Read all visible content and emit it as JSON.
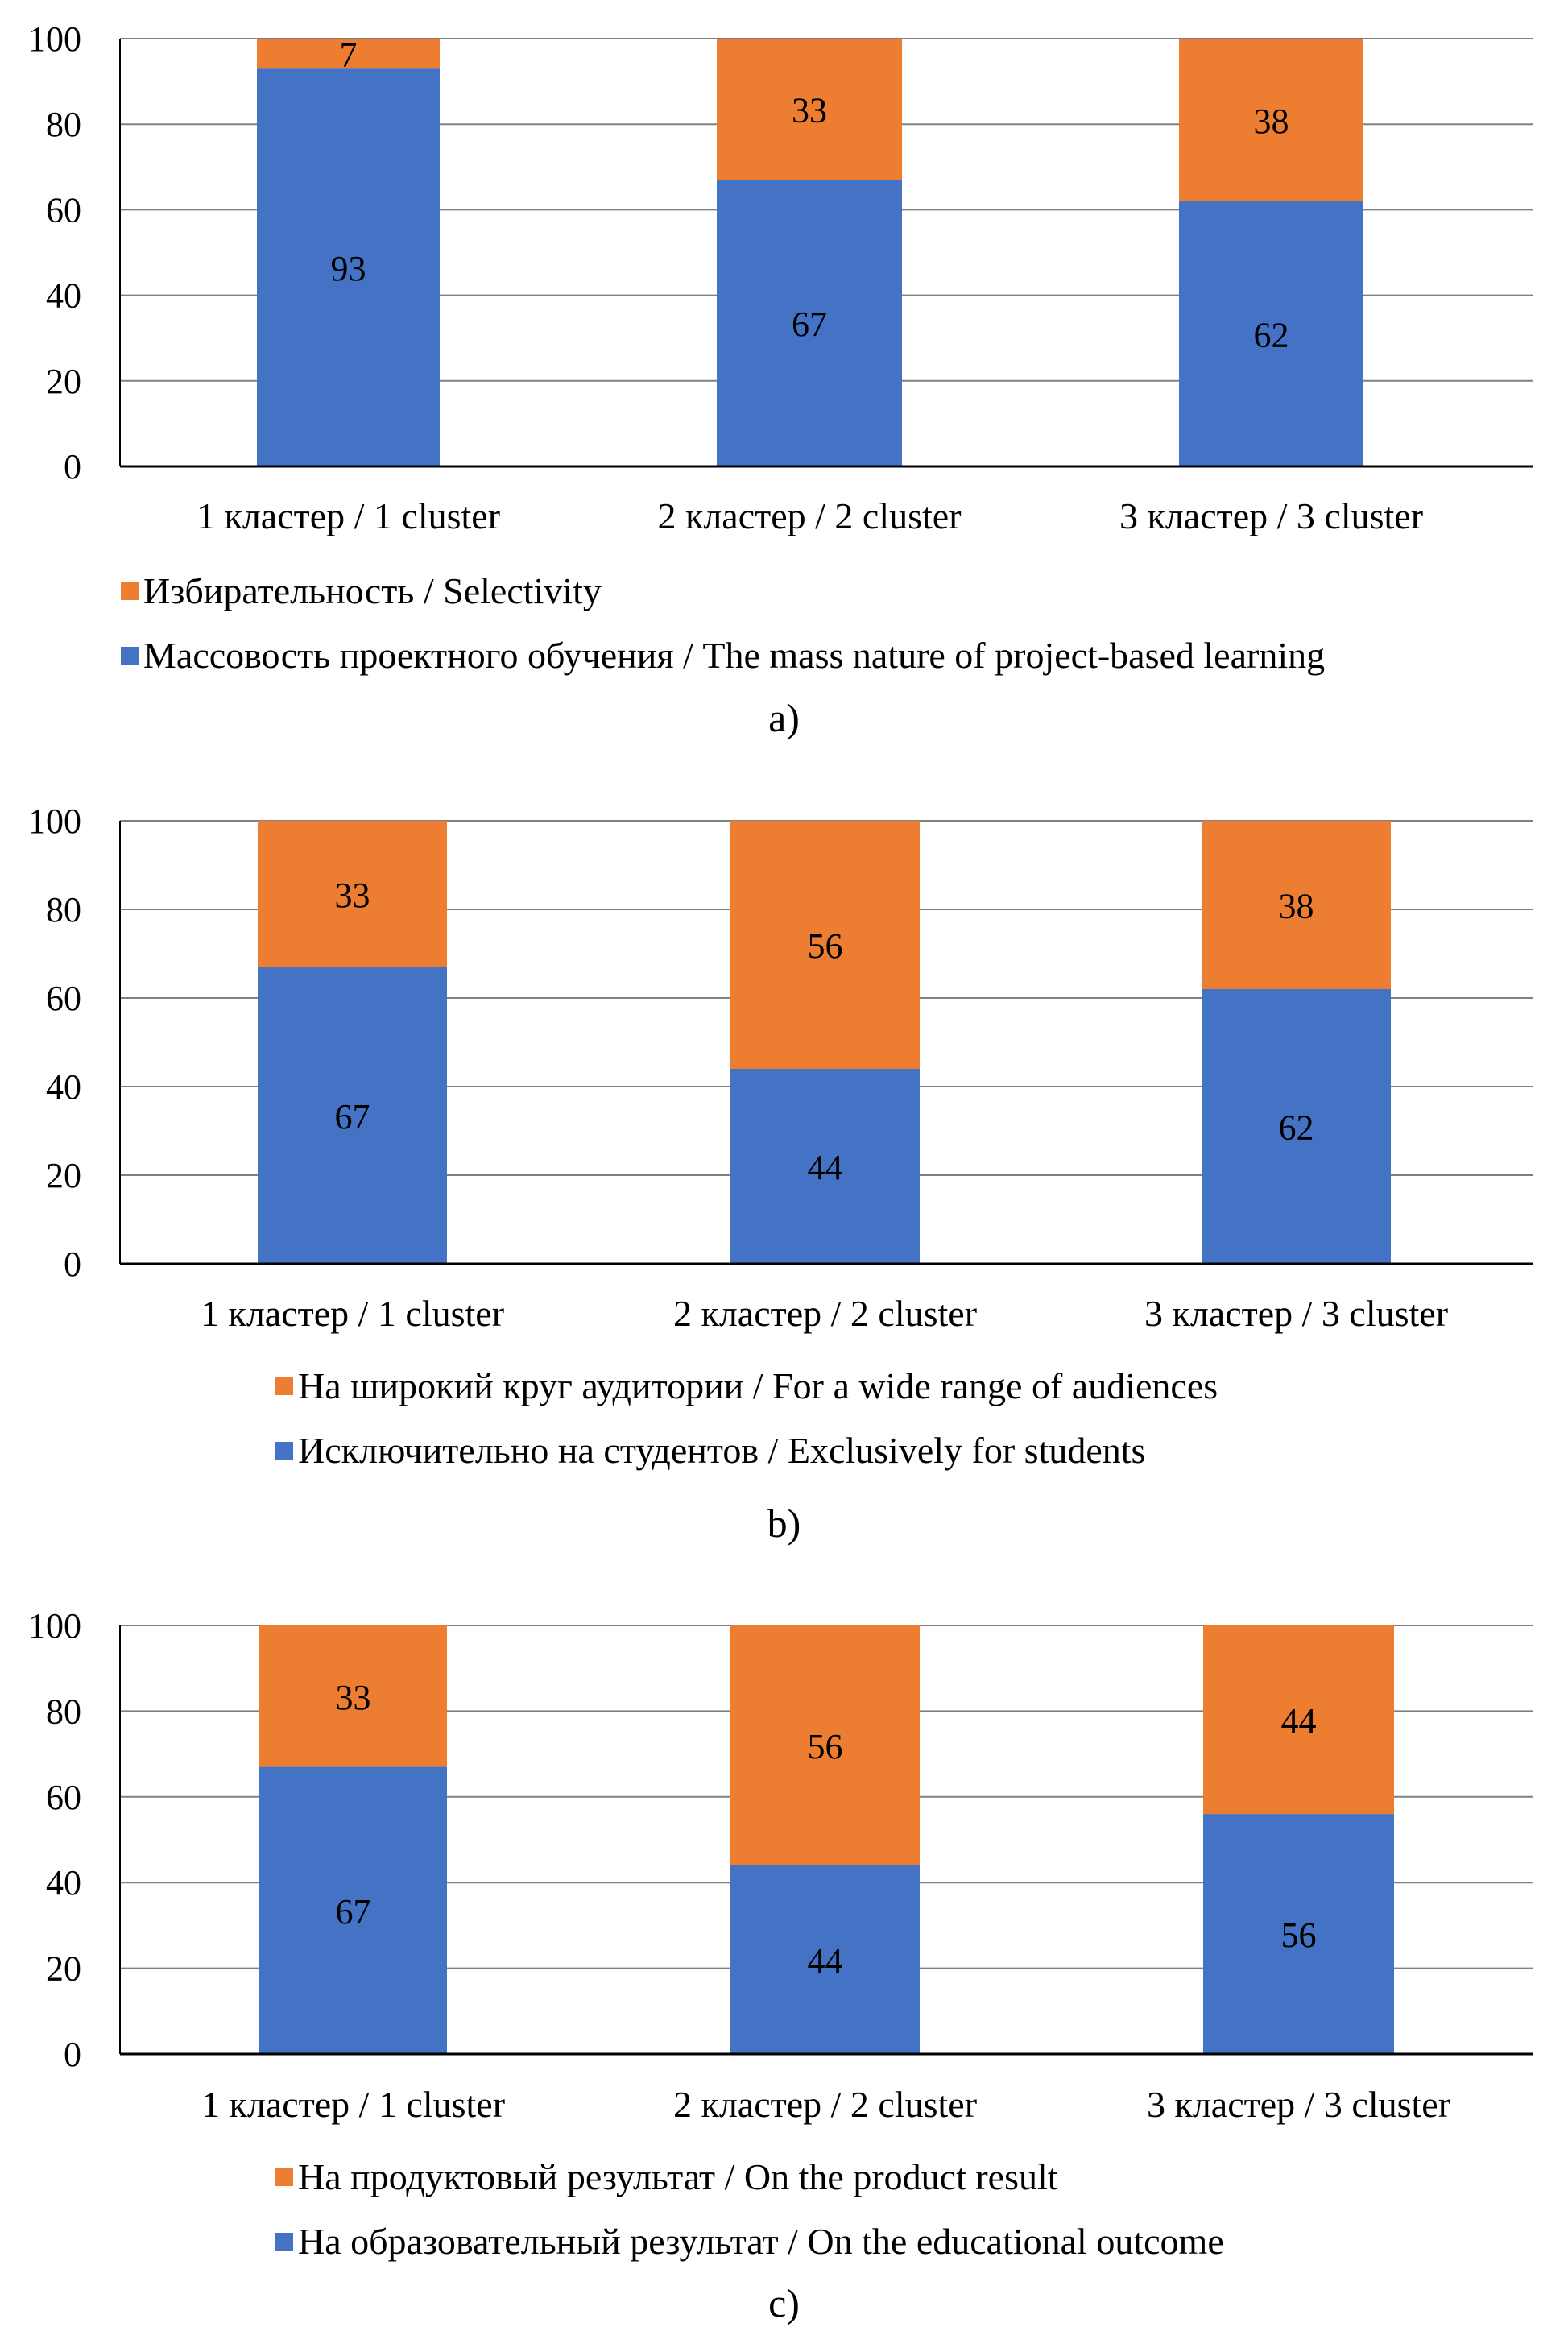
{
  "colors": {
    "series_blue": "#4472C4",
    "series_orange": "#ED7D31",
    "grid": "#808080",
    "axis": "#000000"
  },
  "chart_data": [
    {
      "type": "bar",
      "stacked": true,
      "caption": "a)",
      "categories": [
        "1 кластер / 1 cluster",
        "2 кластер / 2 cluster",
        "3 кластер / 3 cluster"
      ],
      "series": [
        {
          "name": "Массовость проектного обучения / The mass nature of project-based learning",
          "color": "#4472C4",
          "values": [
            93,
            67,
            62
          ]
        },
        {
          "name": "Избирательность / Selectivity",
          "color": "#ED7D31",
          "values": [
            7,
            33,
            38
          ]
        }
      ],
      "legend_order": [
        1,
        0
      ],
      "title": "",
      "xlabel": "",
      "ylabel": "",
      "ylim": [
        0,
        100
      ],
      "yticks": [
        0,
        20,
        40,
        60,
        80,
        100
      ],
      "grid": true,
      "legend_position": "bottom"
    },
    {
      "type": "bar",
      "stacked": true,
      "caption": "b)",
      "categories": [
        "1 кластер / 1 cluster",
        "2 кластер / 2 cluster",
        "3 кластер / 3 cluster"
      ],
      "series": [
        {
          "name": "Исключительно на студентов / Exclusively  for students",
          "color": "#4472C4",
          "values": [
            67,
            44,
            62
          ]
        },
        {
          "name": "На широкий круг аудитории / For a wide range of audiences",
          "color": "#ED7D31",
          "values": [
            33,
            56,
            38
          ]
        }
      ],
      "legend_order": [
        1,
        0
      ],
      "title": "",
      "xlabel": "",
      "ylabel": "",
      "ylim": [
        0,
        100
      ],
      "yticks": [
        0,
        20,
        40,
        60,
        80,
        100
      ],
      "grid": true,
      "legend_position": "bottom"
    },
    {
      "type": "bar",
      "stacked": true,
      "caption": "c)",
      "categories": [
        "1 кластер / 1 cluster",
        "2 кластер / 2 cluster",
        "3 кластер / 3 cluster"
      ],
      "series": [
        {
          "name": "На образовательный результат / On the educational outcome",
          "color": "#4472C4",
          "values": [
            67,
            44,
            56
          ]
        },
        {
          "name": "На продуктовый результат / On the product result",
          "color": "#ED7D31",
          "values": [
            33,
            56,
            44
          ]
        }
      ],
      "legend_order": [
        1,
        0
      ],
      "title": "",
      "xlabel": "",
      "ylabel": "",
      "ylim": [
        0,
        100
      ],
      "yticks": [
        0,
        20,
        40,
        60,
        80,
        100
      ],
      "grid": true,
      "legend_position": "bottom"
    }
  ]
}
